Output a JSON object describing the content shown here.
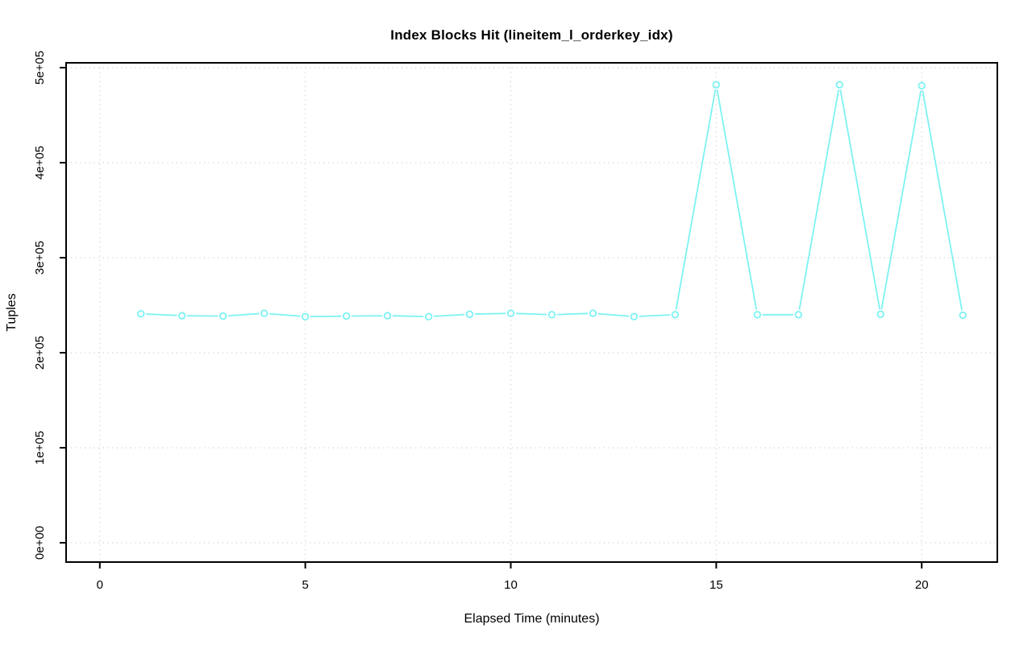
{
  "page": {
    "background_color": "#ffffff"
  },
  "chart_data": {
    "type": "line",
    "title": "Index Blocks Hit (lineitem_l_orderkey_idx)",
    "xlabel": "Elapsed Time (minutes)",
    "ylabel": "Tuples",
    "series": [
      {
        "name": "index-blocks-hit",
        "x": [
          1,
          2,
          3,
          4,
          5,
          6,
          7,
          8,
          9,
          10,
          11,
          12,
          13,
          14,
          15,
          16,
          17,
          18,
          19,
          20,
          21
        ],
        "values": [
          241000,
          239000,
          238500,
          241500,
          238000,
          238500,
          239000,
          238000,
          240500,
          241500,
          240000,
          241500,
          238000,
          240000,
          482000,
          240000,
          240000,
          482000,
          240500,
          481000,
          239500
        ]
      }
    ],
    "x_ticks": [
      0,
      5,
      10,
      15,
      20
    ],
    "y_ticks": [
      0,
      100000,
      200000,
      300000,
      400000,
      500000
    ],
    "y_tick_labels": [
      "0e+00",
      "1e+05",
      "2e+05",
      "3e+05",
      "4e+05",
      "5e+05"
    ],
    "x_tick_labels": [
      "0",
      "5",
      "10",
      "15",
      "20"
    ],
    "xlim": [
      -0.82,
      21.84
    ],
    "ylim": [
      -20300,
      505100
    ],
    "grid": "dotted gridlines at every x and y tick",
    "legend": "none",
    "marker": "open-circle",
    "line_type": "both-points-and-gapped-segments",
    "colors": {
      "line": "#7DF2F2",
      "marker": "#7DF2F2",
      "grid": "#CBCBCB",
      "axis": "#000000",
      "text": "#000000",
      "background": "#FFFFFF"
    }
  }
}
